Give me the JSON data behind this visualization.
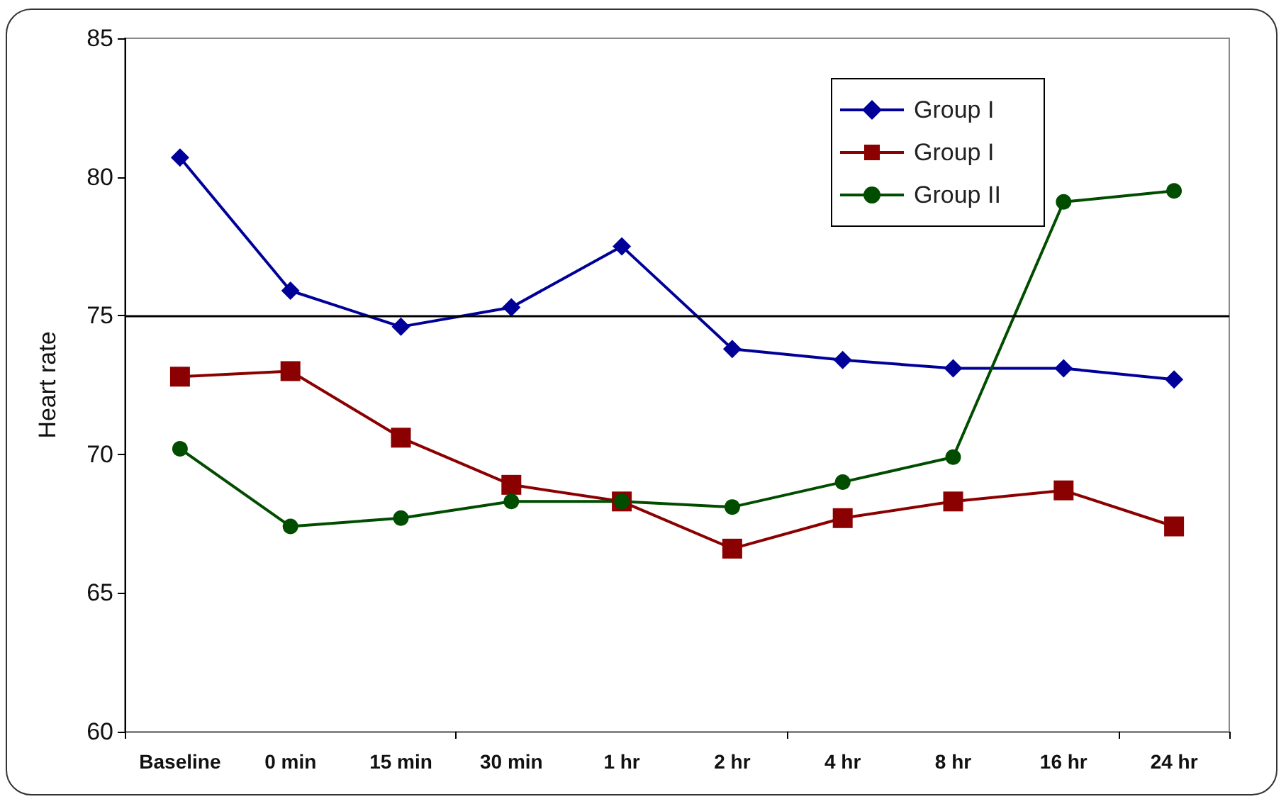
{
  "chart_data": {
    "type": "line",
    "ylabel": "Heart rate",
    "categories": [
      "Baseline",
      "0 min",
      "15 min",
      "30 min",
      "1 hr",
      "2 hr",
      "4 hr",
      "8 hr",
      "16 hr",
      "24 hr"
    ],
    "ylim": [
      60,
      85
    ],
    "yticks": [
      60,
      65,
      70,
      75,
      80,
      85
    ],
    "grid": false,
    "legend": "top right",
    "ref_lines": [
      {
        "axis": "y",
        "value": 75,
        "color": "#000000"
      }
    ],
    "series": [
      {
        "name": "Group I",
        "color": "#000099",
        "marker": "diamond",
        "values": [
          80.7,
          75.9,
          74.6,
          75.3,
          77.5,
          73.8,
          73.4,
          73.1,
          73.1,
          72.7
        ]
      },
      {
        "name": "Group I",
        "color": "#8b0000",
        "marker": "square",
        "values": [
          72.8,
          73.0,
          70.6,
          68.9,
          68.3,
          66.6,
          67.7,
          68.3,
          68.7,
          67.4
        ]
      },
      {
        "name": "Group II",
        "color": "#004d00",
        "marker": "circle",
        "values": [
          70.2,
          67.4,
          67.7,
          68.3,
          68.3,
          68.1,
          69.0,
          69.9,
          79.1,
          79.5
        ]
      }
    ]
  }
}
